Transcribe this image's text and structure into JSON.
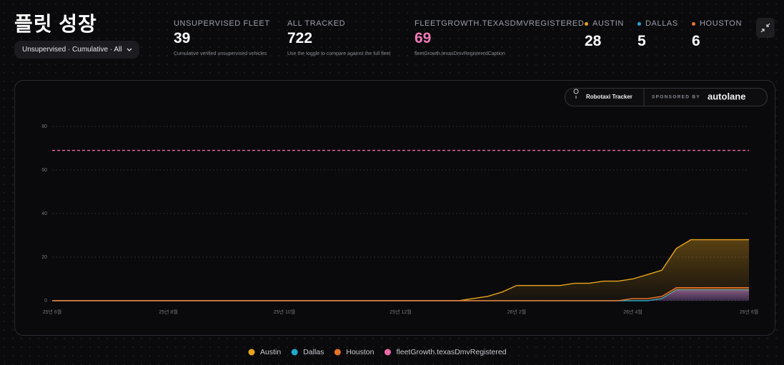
{
  "header": {
    "title": "플릿 성장",
    "filter": "Unsupervised · Cumulative · All"
  },
  "stats": [
    {
      "label": "UNSUPERVISED FLEET",
      "value": 39,
      "caption": "Cumulative verified unsupervised vehicles"
    },
    {
      "label": "ALL TRACKED",
      "value": 722,
      "caption": "Use the toggle to compare against the full fleet"
    },
    {
      "label": "FLEETGROWTH.TEXASDMVREGISTERED",
      "value": 69,
      "caption": "fleetGrowth.texasDmvRegisteredCaption"
    }
  ],
  "cities": [
    {
      "name": "AUSTIN",
      "value": 28
    },
    {
      "name": "DALLAS",
      "value": 5
    },
    {
      "name": "HOUSTON",
      "value": 6
    }
  ],
  "badge": {
    "tracker": "Robotaxi Tracker",
    "sponsored": "SPONSORED BY",
    "sponsor": "autolane"
  },
  "chart_data": {
    "type": "area",
    "categories": [
      "25년 6월",
      null,
      null,
      null,
      null,
      null,
      null,
      null,
      "25년 8월",
      null,
      null,
      null,
      null,
      null,
      null,
      null,
      "25년 10월",
      null,
      null,
      null,
      null,
      null,
      null,
      null,
      "25년 12월",
      null,
      null,
      null,
      null,
      null,
      null,
      null,
      "26년 2월",
      null,
      null,
      null,
      null,
      null,
      null,
      null,
      "26년 4월",
      null,
      null,
      null,
      null,
      null,
      null,
      null,
      "26년 6월"
    ],
    "ylim": [
      0,
      80
    ],
    "yticks": [
      0,
      20,
      40,
      60,
      80
    ],
    "grid": true,
    "series": [
      {
        "name": "Austin",
        "color": "#e8a41c",
        "values": [
          0,
          0,
          0,
          0,
          0,
          0,
          0,
          0,
          0,
          0,
          0,
          0,
          0,
          0,
          0,
          0,
          0,
          0,
          0,
          0,
          0,
          0,
          0,
          0,
          0,
          0,
          0,
          0,
          0,
          1,
          2,
          4,
          7,
          7,
          7,
          7,
          8,
          8,
          9,
          9,
          10,
          12,
          14,
          24,
          28,
          28,
          28,
          28,
          28
        ]
      },
      {
        "name": "Dallas",
        "color": "#1ea9cc",
        "values": [
          0,
          0,
          0,
          0,
          0,
          0,
          0,
          0,
          0,
          0,
          0,
          0,
          0,
          0,
          0,
          0,
          0,
          0,
          0,
          0,
          0,
          0,
          0,
          0,
          0,
          0,
          0,
          0,
          0,
          0,
          0,
          0,
          0,
          0,
          0,
          0,
          0,
          0,
          0,
          0,
          0,
          0,
          1,
          5,
          5,
          5,
          5,
          5,
          5
        ]
      },
      {
        "name": "Houston",
        "color": "#ea7428",
        "values": [
          0,
          0,
          0,
          0,
          0,
          0,
          0,
          0,
          0,
          0,
          0,
          0,
          0,
          0,
          0,
          0,
          0,
          0,
          0,
          0,
          0,
          0,
          0,
          0,
          0,
          0,
          0,
          0,
          0,
          0,
          0,
          0,
          0,
          0,
          0,
          0,
          0,
          0,
          0,
          0,
          1,
          1,
          2,
          6,
          6,
          6,
          6,
          6,
          6
        ]
      },
      {
        "name": "fleetGrowth.texasDmvRegistered",
        "color": "#ec6aa8",
        "dashed": true,
        "values": [
          69,
          69,
          69,
          69,
          69,
          69,
          69,
          69,
          69,
          69,
          69,
          69,
          69,
          69,
          69,
          69,
          69,
          69,
          69,
          69,
          69,
          69,
          69,
          69,
          69,
          69,
          69,
          69,
          69,
          69,
          69,
          69,
          69,
          69,
          69,
          69,
          69,
          69,
          69,
          69,
          69,
          69,
          69,
          69,
          69,
          69,
          69,
          69,
          69
        ]
      }
    ]
  }
}
